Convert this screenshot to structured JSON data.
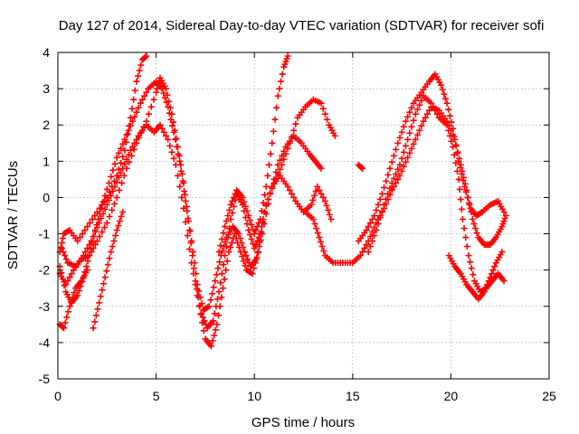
{
  "chart_data": {
    "type": "scatter",
    "title": "Day 127 of 2014, Sidereal Day-to-day VTEC variation (SDTVAR) for receiver sofi",
    "xlabel": "GPS time / hours",
    "ylabel": "SDTVAR / TECUs",
    "xlim": [
      0,
      25
    ],
    "ylim": [
      -5,
      4
    ],
    "x_ticks": [
      0,
      5,
      10,
      15,
      20,
      25
    ],
    "x_tick_labels": [
      "0",
      "5",
      "10",
      "15",
      "20",
      "25"
    ],
    "y_ticks": [
      -5,
      -4,
      -3,
      -2,
      -1,
      0,
      1,
      2,
      3,
      4
    ],
    "y_tick_labels": [
      "-5",
      "-4",
      "-3",
      "-2",
      "-1",
      "0",
      "1",
      "2",
      "3",
      "4"
    ],
    "grid": true,
    "marker": "plus",
    "color": "#ff0000",
    "series": [
      {
        "name": "track-1",
        "points": [
          [
            0.1,
            -1.5
          ],
          [
            0.3,
            -1.0
          ],
          [
            0.6,
            -0.9
          ],
          [
            1.0,
            -1.2
          ],
          [
            1.5,
            -0.8
          ],
          [
            2.0,
            -0.4
          ],
          [
            2.5,
            0.0
          ],
          [
            3.0,
            0.6
          ],
          [
            3.4,
            1.3
          ],
          [
            3.7,
            2.2
          ],
          [
            4.0,
            3.2
          ],
          [
            4.3,
            3.8
          ],
          [
            4.5,
            3.9
          ]
        ]
      },
      {
        "name": "track-2",
        "points": [
          [
            0.1,
            -2.1
          ],
          [
            0.4,
            -2.4
          ],
          [
            0.8,
            -2.0
          ],
          [
            1.2,
            -1.7
          ],
          [
            1.6,
            -1.6
          ],
          [
            2.0,
            -1.2
          ],
          [
            2.5,
            -0.7
          ],
          [
            3.0,
            0.0
          ],
          [
            3.5,
            0.8
          ],
          [
            4.0,
            1.5
          ],
          [
            4.5,
            2.1
          ],
          [
            5.0,
            2.9
          ],
          [
            5.2,
            3.3
          ],
          [
            5.5,
            3.0
          ],
          [
            5.8,
            2.3
          ],
          [
            6.1,
            1.4
          ],
          [
            6.4,
            0.4
          ],
          [
            6.7,
            -0.9
          ],
          [
            7.0,
            -2.3
          ],
          [
            7.3,
            -3.2
          ],
          [
            7.6,
            -3.6
          ],
          [
            7.9,
            -3.4
          ],
          [
            8.2,
            -2.6
          ],
          [
            8.5,
            -1.6
          ],
          [
            8.8,
            -0.6
          ],
          [
            9.1,
            0.1
          ],
          [
            9.4,
            -0.2
          ],
          [
            9.7,
            -0.9
          ],
          [
            10.0,
            -1.4
          ],
          [
            10.3,
            -1.0
          ],
          [
            10.6,
            -0.2
          ],
          [
            11.0,
            0.4
          ],
          [
            11.4,
            0.9
          ],
          [
            11.8,
            1.5
          ],
          [
            12.2,
            2.2
          ],
          [
            12.6,
            2.5
          ],
          [
            13.0,
            2.7
          ],
          [
            13.4,
            2.6
          ],
          [
            13.8,
            2.0
          ],
          [
            14.1,
            1.7
          ]
        ]
      },
      {
        "name": "track-3",
        "points": [
          [
            0.1,
            -1.9
          ],
          [
            0.4,
            -2.6
          ],
          [
            0.7,
            -2.9
          ],
          [
            1.0,
            -2.7
          ],
          [
            1.3,
            -2.2
          ],
          [
            1.6,
            -1.6
          ],
          [
            1.9,
            -0.9
          ],
          [
            2.2,
            -0.3
          ],
          [
            2.6,
            0.4
          ],
          [
            3.0,
            1.1
          ],
          [
            3.4,
            1.6
          ],
          [
            3.8,
            2.1
          ],
          [
            4.2,
            2.6
          ],
          [
            4.6,
            3.0
          ],
          [
            5.0,
            3.2
          ],
          [
            5.3,
            3.0
          ],
          [
            5.6,
            2.5
          ],
          [
            5.9,
            1.8
          ],
          [
            6.2,
            1.0
          ],
          [
            6.5,
            -0.1
          ],
          [
            6.8,
            -1.2
          ],
          [
            7.1,
            -2.4
          ],
          [
            7.4,
            -3.1
          ],
          [
            7.7,
            -3.0
          ],
          [
            8.0,
            -2.3
          ],
          [
            8.3,
            -1.6
          ],
          [
            8.6,
            -1.1
          ],
          [
            8.9,
            -0.8
          ],
          [
            9.2,
            -1.0
          ],
          [
            9.5,
            -1.5
          ],
          [
            9.8,
            -1.9
          ],
          [
            10.1,
            -1.7
          ],
          [
            10.4,
            -1.0
          ],
          [
            10.8,
            0.1
          ],
          [
            11.2,
            0.9
          ],
          [
            11.6,
            1.4
          ],
          [
            12.0,
            1.7
          ],
          [
            12.4,
            1.5
          ],
          [
            12.8,
            1.2
          ],
          [
            13.1,
            1.0
          ],
          [
            13.4,
            0.8
          ]
        ]
      },
      {
        "name": "track-4",
        "points": [
          [
            0.2,
            -1.4
          ],
          [
            0.5,
            -1.8
          ],
          [
            0.9,
            -1.9
          ],
          [
            1.3,
            -1.6
          ],
          [
            1.7,
            -1.2
          ],
          [
            2.1,
            -0.7
          ],
          [
            2.5,
            -0.2
          ],
          [
            2.9,
            0.3
          ],
          [
            3.3,
            0.8
          ],
          [
            3.7,
            1.3
          ],
          [
            4.1,
            1.7
          ],
          [
            4.5,
            2.0
          ],
          [
            4.9,
            1.8
          ],
          [
            5.2,
            2.0
          ],
          [
            5.6,
            1.6
          ],
          [
            6.0,
            0.9
          ],
          [
            6.4,
            -0.3
          ],
          [
            6.8,
            -1.8
          ],
          [
            7.2,
            -3.0
          ],
          [
            7.5,
            -3.9
          ],
          [
            7.8,
            -4.1
          ],
          [
            8.1,
            -3.5
          ],
          [
            8.4,
            -2.5
          ],
          [
            8.7,
            -1.5
          ],
          [
            9.0,
            -1.0
          ],
          [
            9.3,
            -1.5
          ],
          [
            9.6,
            -2.0
          ],
          [
            9.9,
            -2.1
          ],
          [
            10.2,
            -1.5
          ],
          [
            10.5,
            -0.4
          ],
          [
            10.9,
            0.3
          ],
          [
            11.3,
            0.6
          ],
          [
            11.7,
            0.3
          ],
          [
            12.1,
            -0.1
          ],
          [
            12.5,
            -0.4
          ],
          [
            12.9,
            -0.2
          ],
          [
            13.2,
            0.3
          ],
          [
            13.6,
            -0.1
          ],
          [
            13.9,
            -0.6
          ]
        ]
      },
      {
        "name": "track-5",
        "points": [
          [
            0.1,
            -3.5
          ],
          [
            0.3,
            -3.6
          ],
          [
            0.6,
            -3.0
          ],
          [
            0.9,
            -2.5
          ],
          [
            1.2,
            -2.3
          ],
          [
            1.5,
            -2.0
          ]
        ]
      },
      {
        "name": "track-6",
        "points": [
          [
            1.8,
            -3.6
          ],
          [
            2.1,
            -2.9
          ],
          [
            2.4,
            -2.2
          ],
          [
            2.7,
            -1.5
          ],
          [
            3.0,
            -0.9
          ],
          [
            3.3,
            -0.4
          ]
        ]
      },
      {
        "name": "track-7",
        "points": [
          [
            8.2,
            -1.5
          ],
          [
            8.5,
            -0.8
          ],
          [
            8.8,
            -0.2
          ],
          [
            9.1,
            0.2
          ],
          [
            9.4,
            0.0
          ],
          [
            9.7,
            -0.5
          ],
          [
            10.0,
            -1.0
          ],
          [
            10.3,
            -0.6
          ],
          [
            10.6,
            0.3
          ],
          [
            10.9,
            1.5
          ],
          [
            11.2,
            2.8
          ],
          [
            11.5,
            3.6
          ],
          [
            11.7,
            3.9
          ]
        ]
      },
      {
        "name": "track-8",
        "points": [
          [
            12.6,
            -0.4
          ],
          [
            13.0,
            -0.6
          ],
          [
            13.3,
            -1.1
          ],
          [
            13.6,
            -1.6
          ],
          [
            14.0,
            -1.8
          ],
          [
            14.5,
            -1.8
          ],
          [
            15.0,
            -1.8
          ],
          [
            15.4,
            -1.6
          ],
          [
            15.8,
            -1.2
          ],
          [
            16.2,
            -0.7
          ],
          [
            16.6,
            -0.3
          ],
          [
            17.0,
            0.2
          ],
          [
            17.4,
            0.6
          ],
          [
            17.8,
            1.1
          ],
          [
            18.2,
            1.6
          ],
          [
            18.6,
            2.1
          ],
          [
            19.0,
            2.5
          ],
          [
            19.4,
            2.4
          ],
          [
            19.8,
            2.1
          ],
          [
            20.2,
            1.6
          ],
          [
            20.5,
            0.9
          ],
          [
            20.8,
            0.2
          ],
          [
            21.1,
            -0.6
          ],
          [
            21.4,
            -1.1
          ],
          [
            21.7,
            -1.3
          ],
          [
            22.0,
            -1.3
          ],
          [
            22.3,
            -1.1
          ],
          [
            22.6,
            -0.8
          ],
          [
            22.8,
            -0.5
          ]
        ]
      },
      {
        "name": "track-9",
        "points": [
          [
            15.3,
            0.9
          ],
          [
            15.5,
            0.8
          ]
        ]
      },
      {
        "name": "track-10",
        "points": [
          [
            15.3,
            -1.2
          ],
          [
            15.7,
            -0.9
          ],
          [
            16.1,
            -0.5
          ],
          [
            16.5,
            0.1
          ],
          [
            16.9,
            0.8
          ],
          [
            17.3,
            1.5
          ],
          [
            17.7,
            2.1
          ],
          [
            18.1,
            2.6
          ],
          [
            18.5,
            2.9
          ],
          [
            18.9,
            3.2
          ],
          [
            19.2,
            3.4
          ],
          [
            19.5,
            3.1
          ],
          [
            19.8,
            2.6
          ],
          [
            20.1,
            1.9
          ],
          [
            20.4,
            1.0
          ],
          [
            20.7,
            0.3
          ],
          [
            21.0,
            -0.3
          ],
          [
            21.3,
            -0.5
          ],
          [
            21.6,
            -0.4
          ],
          [
            22.0,
            -0.2
          ],
          [
            22.4,
            -0.1
          ],
          [
            22.7,
            -0.4
          ]
        ]
      },
      {
        "name": "track-11",
        "points": [
          [
            15.8,
            -1.5
          ],
          [
            16.2,
            -0.9
          ],
          [
            16.6,
            -0.2
          ],
          [
            17.0,
            0.4
          ],
          [
            17.4,
            0.9
          ],
          [
            17.8,
            1.6
          ],
          [
            18.2,
            2.3
          ],
          [
            18.6,
            2.8
          ],
          [
            19.0,
            2.6
          ],
          [
            19.4,
            2.2
          ],
          [
            19.8,
            2.0
          ],
          [
            20.1,
            1.4
          ],
          [
            20.4,
            0.5
          ],
          [
            20.6,
            -0.6
          ],
          [
            20.9,
            -1.6
          ],
          [
            21.2,
            -2.3
          ],
          [
            21.5,
            -2.6
          ],
          [
            21.8,
            -2.5
          ],
          [
            22.1,
            -2.3
          ],
          [
            22.4,
            -2.1
          ],
          [
            22.7,
            -2.3
          ]
        ]
      },
      {
        "name": "track-12",
        "points": [
          [
            19.9,
            -1.6
          ],
          [
            20.2,
            -1.9
          ],
          [
            20.5,
            -2.1
          ],
          [
            20.8,
            -2.4
          ],
          [
            21.1,
            -2.6
          ],
          [
            21.4,
            -2.8
          ],
          [
            21.7,
            -2.6
          ],
          [
            22.0,
            -2.2
          ],
          [
            22.3,
            -1.8
          ],
          [
            22.6,
            -1.5
          ]
        ]
      }
    ]
  }
}
